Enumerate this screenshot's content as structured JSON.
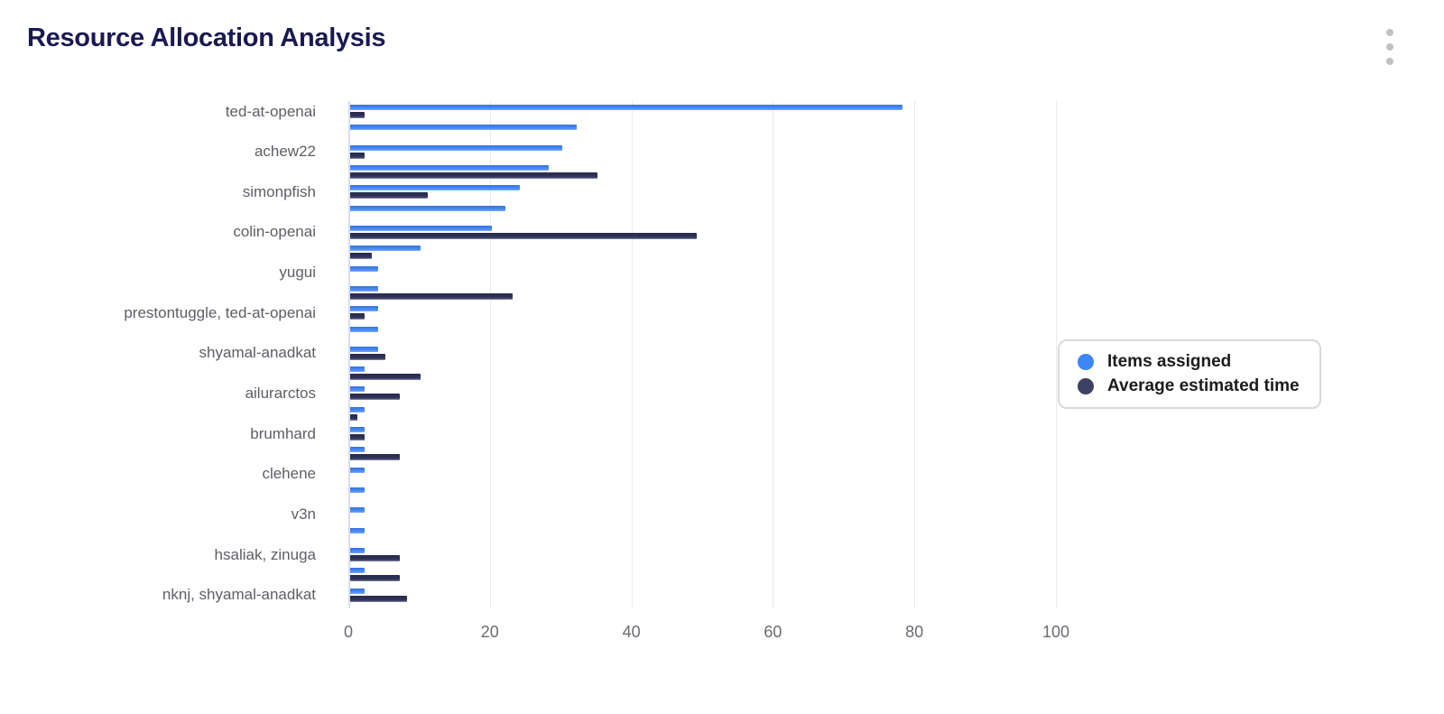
{
  "header": {
    "title": "Resource Allocation Analysis",
    "menu_icon": "kebab-menu-icon"
  },
  "legend": {
    "items": [
      {
        "label": "Items assigned",
        "color": "#3c86f5"
      },
      {
        "label": "Average estimated time",
        "color": "#3d4164"
      }
    ]
  },
  "chart_data": {
    "type": "bar",
    "orientation": "horizontal",
    "title": "Resource Allocation Analysis",
    "xlabel": "",
    "ylabel": "",
    "xlim": [
      0,
      100
    ],
    "x_ticks": [
      0,
      20,
      40,
      60,
      80,
      100
    ],
    "grid": true,
    "legend_position": "right",
    "categories": [
      "ted-at-openai",
      "",
      "achew22",
      "",
      "simonpfish",
      "",
      "colin-openai",
      "",
      "yugui",
      "",
      "prestontuggle, ted-at-openai",
      "",
      "shyamal-anadkat",
      "",
      "ailurarctos",
      "",
      "brumhard",
      "",
      "clehene",
      "",
      "v3n",
      "",
      "hsaliak, zinuga",
      "",
      "nknj, shyamal-anadkat"
    ],
    "series": [
      {
        "name": "Items assigned",
        "color": "#3f82f2",
        "values": [
          78,
          32,
          30,
          28,
          24,
          22,
          20,
          10,
          4,
          4,
          4,
          4,
          4,
          2,
          2,
          2,
          2,
          2,
          2,
          2,
          2,
          2,
          2,
          2,
          2
        ]
      },
      {
        "name": "Average estimated time",
        "color": "#2e3256",
        "values": [
          2,
          0,
          2,
          35,
          11,
          0,
          49,
          3,
          0,
          23,
          2,
          0,
          5,
          10,
          7,
          1,
          2,
          7,
          0,
          0,
          0,
          0,
          7,
          7,
          8
        ]
      }
    ]
  }
}
